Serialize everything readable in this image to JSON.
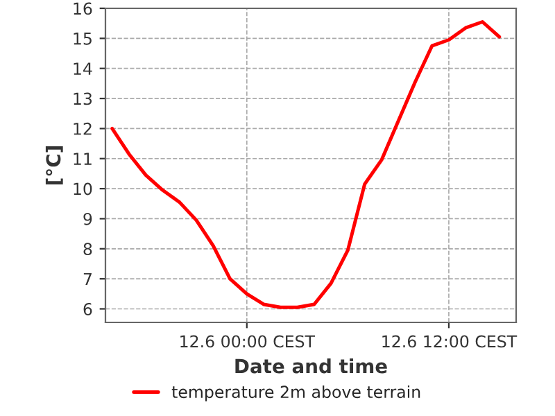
{
  "chart_data": {
    "type": "line",
    "xlabel": "Date and time",
    "ylabel": "[°C]",
    "categories": [
      null,
      null,
      null,
      null,
      null,
      null,
      null,
      null,
      "12.6 00:00 CEST",
      null,
      null,
      null,
      null,
      null,
      null,
      null,
      null,
      null,
      null,
      null,
      "12.6 12:00 CEST",
      null,
      null,
      null
    ],
    "series": [
      {
        "name": "temperature 2m above terrain",
        "color": "#ff0000",
        "values": [
          12.0,
          11.15,
          10.45,
          9.95,
          9.55,
          8.95,
          8.1,
          7.0,
          6.5,
          6.15,
          6.05,
          6.05,
          6.15,
          6.85,
          7.95,
          10.15,
          10.95,
          12.25,
          13.55,
          14.75,
          14.95,
          15.35,
          15.55,
          15.05
        ]
      }
    ],
    "ylim": [
      5.55,
      16
    ],
    "yticks": [
      6,
      7,
      8,
      9,
      10,
      11,
      12,
      13,
      14,
      15,
      16
    ],
    "grid": true,
    "legend": "bottom",
    "marker": "none",
    "line_style": "solid"
  }
}
